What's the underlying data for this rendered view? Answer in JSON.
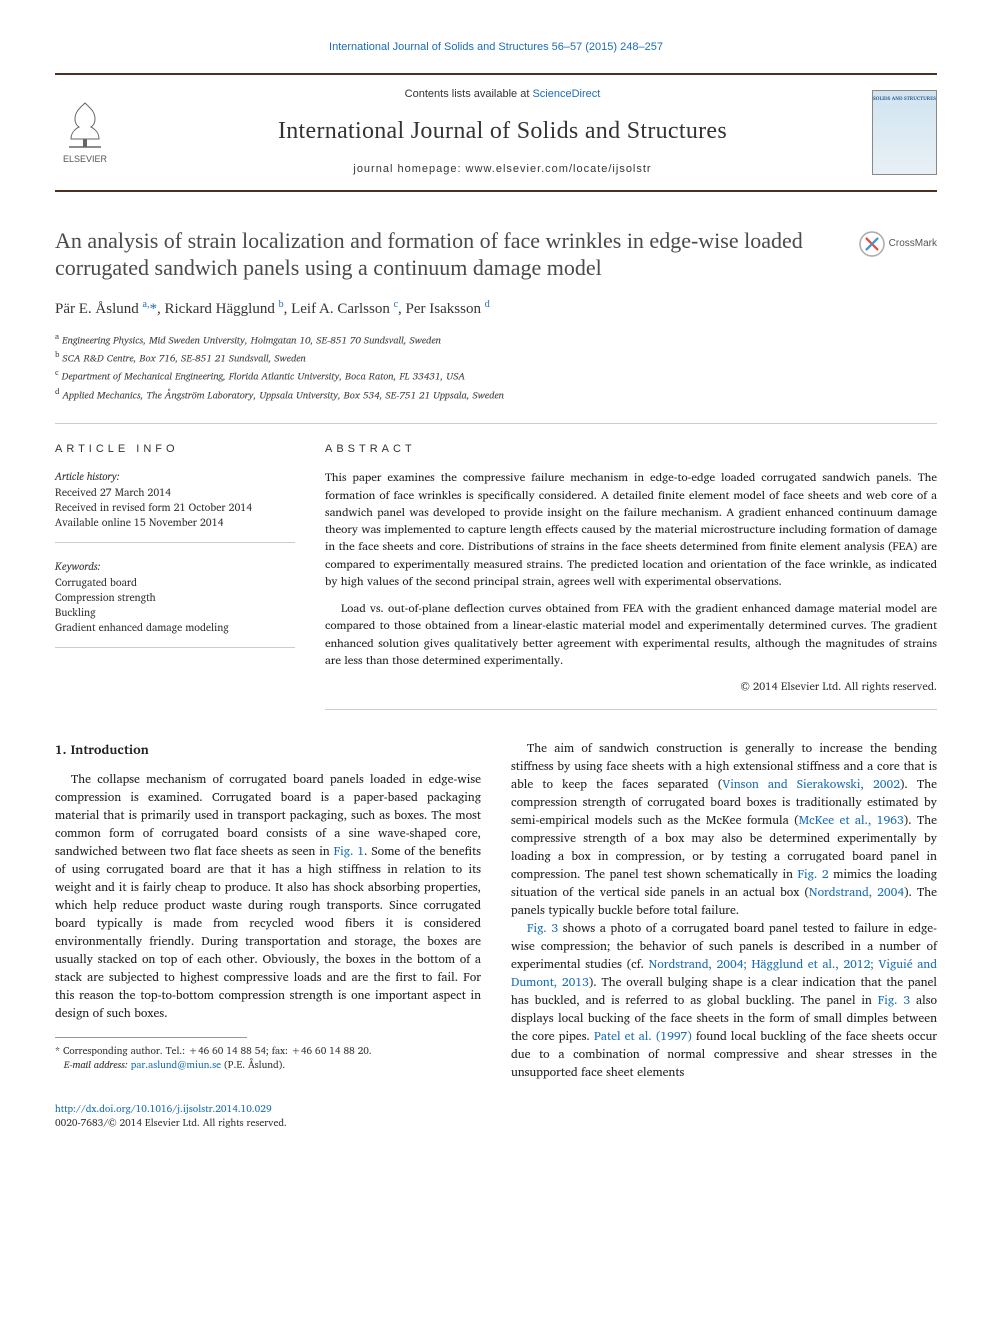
{
  "header": {
    "citation_link": "International Journal of Solids and Structures 56–57 (2015) 248–257",
    "contents_prefix": "Contents lists available at ",
    "contents_link": "ScienceDirect",
    "journal_name": "International Journal of Solids and Structures",
    "homepage_label": "journal homepage: www.elsevier.com/locate/ijsolstr",
    "publisher": "ELSEVIER",
    "cover_text": "SOLIDS AND STRUCTURES"
  },
  "crossmark": "CrossMark",
  "title": "An analysis of strain localization and formation of face wrinkles in edge-wise loaded corrugated sandwich panels using a continuum damage model",
  "authors_html": "Pär E. Åslund <sup>a,</sup><span class='star'>*</span>, Rickard Hägglund <sup>b</sup>, Leif A. Carlsson <sup>c</sup>, Per Isaksson <sup>d</sup>",
  "affiliations": {
    "a": "Engineering Physics, Mid Sweden University, Holmgatan 10, SE-851 70 Sundsvall, Sweden",
    "b": "SCA R&D Centre, Box 716, SE-851 21 Sundsvall, Sweden",
    "c": "Department of Mechanical Engineering, Florida Atlantic University, Boca Raton, FL 33431, USA",
    "d": "Applied Mechanics, The Ångström Laboratory, Uppsala University, Box 534, SE-751 21 Uppsala, Sweden"
  },
  "article_info": {
    "label": "ARTICLE INFO",
    "history_label": "Article history:",
    "received": "Received 27 March 2014",
    "revised": "Received in revised form 21 October 2014",
    "online": "Available online 15 November 2014",
    "keywords_label": "Keywords:",
    "keywords": [
      "Corrugated board",
      "Compression strength",
      "Buckling",
      "Gradient enhanced damage modeling"
    ]
  },
  "abstract": {
    "label": "ABSTRACT",
    "p1": "This paper examines the compressive failure mechanism in edge-to-edge loaded corrugated sandwich panels. The formation of face wrinkles is specifically considered. A detailed finite element model of face sheets and web core of a sandwich panel was developed to provide insight on the failure mechanism. A gradient enhanced continuum damage theory was implemented to capture length effects caused by the material microstructure including formation of damage in the face sheets and core. Distributions of strains in the face sheets determined from finite element analysis (FEA) are compared to experimentally measured strains. The predicted location and orientation of the face wrinkle, as indicated by high values of the second principal strain, agrees well with experimental observations.",
    "p2": "Load vs. out-of-plane deflection curves obtained from FEA with the gradient enhanced damage material model are compared to those obtained from a linear-elastic material model and experimentally determined curves. The gradient enhanced solution gives qualitatively better agreement with experimental results, although the magnitudes of strains are less than those determined experimentally.",
    "copyright": "© 2014 Elsevier Ltd. All rights reserved."
  },
  "body": {
    "section1_title": "1. Introduction",
    "left_p1": "The collapse mechanism of corrugated board panels loaded in edge-wise compression is examined. Corrugated board is a paper-based packaging material that is primarily used in transport packaging, such as boxes. The most common form of corrugated board consists of a sine wave-shaped core, sandwiched between two flat face sheets as seen in ",
    "fig1": "Fig. 1",
    "left_p1b": ". Some of the benefits of using corrugated board are that it has a high stiffness in relation to its weight and it is fairly cheap to produce. It also has shock absorbing properties, which help reduce product waste during rough transports. Since corrugated board typically is made from recycled wood fibers it is considered environmentally friendly. During transportation and storage, the boxes are usually stacked on top of each other. Obviously, the boxes in the bottom of a stack are subjected to highest compressive loads and are the first to fail. For this reason the top-to-bottom compression strength is one important aspect in design of such boxes.",
    "right_p1": "The aim of sandwich construction is generally to increase the bending stiffness by using face sheets with a high extensional stiffness and a core that is able to keep the faces separated (",
    "ref_vinson": "Vinson and Sierakowski, 2002",
    "right_p1b": "). The compression strength of corrugated board boxes is traditionally estimated by semi-empirical models such as the McKee formula (",
    "ref_mckee": "McKee et al., 1963",
    "right_p1c": "). The compressive strength of a box may also be determined experimentally by loading a box in compression, or by testing a corrugated board panel in compression. The panel test shown schematically in ",
    "fig2": "Fig. 2",
    "right_p1d": " mimics the loading situation of the vertical side panels in an actual box (",
    "ref_nord": "Nordstrand, 2004",
    "right_p1e": "). The panels typically buckle before total failure.",
    "right_p2a": "",
    "fig3": "Fig. 3",
    "right_p2b": " shows a photo of a corrugated board panel tested to failure in edge-wise compression; the behavior of such panels is described in a number of experimental studies (cf. ",
    "ref_multi": "Nordstrand, 2004; Hägglund et al., 2012; Viguié and Dumont, 2013",
    "right_p2c": "). The overall bulging shape is a clear indication that the panel has buckled, and is referred to as global buckling. The panel in ",
    "right_p2d": " also displays local bucking of the face sheets in the form of small dimples between the core pipes. ",
    "ref_patel": "Patel et al. (1997)",
    "right_p2e": " found local buckling of the face sheets occur due to a combination of normal compressive and shear stresses in the unsupported face sheet elements"
  },
  "footer": {
    "corr_label": "Corresponding author. Tel.: +46 60 14 88 54; fax: +46 60 14 88 20.",
    "email_label": "E-mail address:",
    "email": "par.aslund@miun.se",
    "email_name": "(P.E. Åslund).",
    "doi": "http://dx.doi.org/10.1016/j.ijsolstr.2014.10.029",
    "issn": "0020-7683/© 2014 Elsevier Ltd. All rights reserved."
  },
  "colors": {
    "link": "#1a6db5",
    "rule": "#4a2f24",
    "text": "#222222"
  }
}
